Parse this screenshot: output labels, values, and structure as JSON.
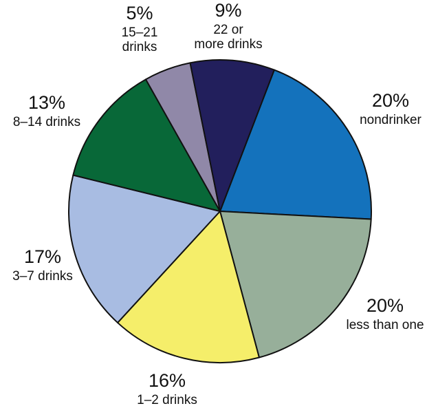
{
  "chart_data": {
    "type": "pie",
    "start_angle_deg": 21,
    "direction": "clockwise",
    "slices": [
      {
        "label_lines": [
          "nondrinker"
        ],
        "value": 20,
        "value_label": "20%",
        "color": "#1472BC"
      },
      {
        "label_lines": [
          "less than one"
        ],
        "value": 20,
        "value_label": "20%",
        "color": "#97AF9A"
      },
      {
        "label_lines": [
          "1–2 drinks"
        ],
        "value": 16,
        "value_label": "16%",
        "color": "#F5EE6A"
      },
      {
        "label_lines": [
          "3–7 drinks"
        ],
        "value": 17,
        "value_label": "17%",
        "color": "#A8BCE2"
      },
      {
        "label_lines": [
          "8–14 drinks"
        ],
        "value": 13,
        "value_label": "13%",
        "color": "#086838"
      },
      {
        "label_lines": [
          "15–21",
          "drinks"
        ],
        "value": 5,
        "value_label": "5%",
        "color": "#9088A8"
      },
      {
        "label_lines": [
          "22 or",
          "more drinks"
        ],
        "value": 9,
        "value_label": "9%",
        "color": "#221F5C"
      }
    ]
  }
}
